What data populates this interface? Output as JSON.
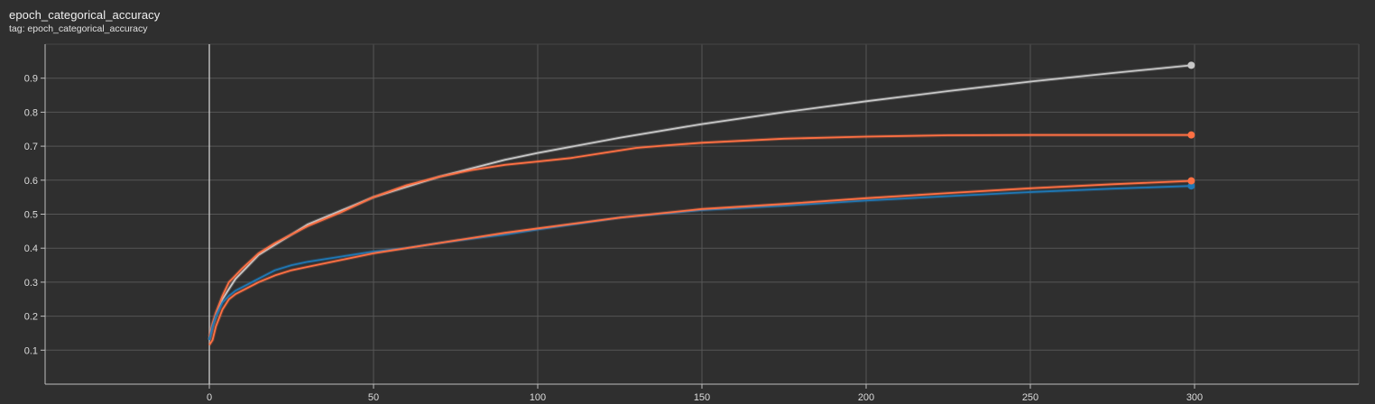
{
  "header": {
    "title": "epoch_categorical_accuracy",
    "subtitle": "tag: epoch_categorical_accuracy"
  },
  "chart_data": {
    "type": "line",
    "title": "epoch_categorical_accuracy",
    "subtitle": "tag: epoch_categorical_accuracy",
    "xlabel": "",
    "ylabel": "",
    "xlim": [
      -50,
      350
    ],
    "ylim": [
      0.0,
      1.0
    ],
    "x_ticks": [
      0,
      50,
      100,
      150,
      200,
      250,
      300
    ],
    "x_tick_labels": [
      "0",
      "50",
      "100",
      "150",
      "200",
      "250",
      "300"
    ],
    "y_ticks": [
      0.1,
      0.2,
      0.3,
      0.4,
      0.5,
      0.6,
      0.7,
      0.8,
      0.9
    ],
    "y_tick_labels": [
      "0.1",
      "0.2",
      "0.3",
      "0.4",
      "0.5",
      "0.6",
      "0.7",
      "0.8",
      "0.9"
    ],
    "grid": true,
    "legend": "none",
    "series": [
      {
        "color": "#c8c8c8",
        "x": [
          0,
          1,
          2,
          4,
          6,
          8,
          10,
          15,
          20,
          25,
          30,
          40,
          50,
          60,
          70,
          80,
          90,
          100,
          125,
          150,
          175,
          200,
          225,
          250,
          275,
          299
        ],
        "y": [
          0.13,
          0.17,
          0.2,
          0.25,
          0.28,
          0.31,
          0.33,
          0.38,
          0.41,
          0.44,
          0.47,
          0.51,
          0.55,
          0.58,
          0.61,
          0.635,
          0.66,
          0.68,
          0.725,
          0.765,
          0.8,
          0.832,
          0.862,
          0.89,
          0.915,
          0.938
        ]
      },
      {
        "color": "#ff7043",
        "x": [
          0,
          1,
          2,
          4,
          6,
          8,
          10,
          15,
          20,
          25,
          30,
          40,
          50,
          60,
          70,
          80,
          90,
          100,
          110,
          120,
          130,
          140,
          150,
          175,
          200,
          225,
          250,
          275,
          299
        ],
        "y": [
          0.14,
          0.18,
          0.21,
          0.26,
          0.3,
          0.32,
          0.34,
          0.385,
          0.415,
          0.44,
          0.465,
          0.505,
          0.55,
          0.585,
          0.61,
          0.63,
          0.645,
          0.655,
          0.665,
          0.68,
          0.695,
          0.703,
          0.71,
          0.722,
          0.728,
          0.732,
          0.733,
          0.733,
          0.733
        ]
      },
      {
        "color": "#1f77b4",
        "x": [
          0,
          1,
          2,
          4,
          6,
          8,
          10,
          15,
          20,
          25,
          30,
          40,
          50,
          60,
          70,
          80,
          90,
          100,
          125,
          150,
          175,
          200,
          225,
          250,
          275,
          299
        ],
        "y": [
          0.13,
          0.17,
          0.2,
          0.24,
          0.26,
          0.275,
          0.285,
          0.31,
          0.335,
          0.35,
          0.36,
          0.375,
          0.39,
          0.4,
          0.415,
          0.428,
          0.44,
          0.455,
          0.49,
          0.512,
          0.525,
          0.54,
          0.553,
          0.565,
          0.575,
          0.583
        ]
      },
      {
        "color": "#ff7043",
        "x": [
          0,
          1,
          2,
          4,
          6,
          8,
          10,
          15,
          20,
          25,
          30,
          40,
          50,
          60,
          70,
          80,
          90,
          100,
          125,
          150,
          175,
          200,
          225,
          250,
          275,
          299
        ],
        "y": [
          0.115,
          0.13,
          0.17,
          0.22,
          0.25,
          0.265,
          0.275,
          0.3,
          0.32,
          0.335,
          0.345,
          0.365,
          0.385,
          0.4,
          0.415,
          0.43,
          0.445,
          0.458,
          0.49,
          0.515,
          0.53,
          0.547,
          0.562,
          0.576,
          0.588,
          0.598
        ]
      }
    ]
  }
}
